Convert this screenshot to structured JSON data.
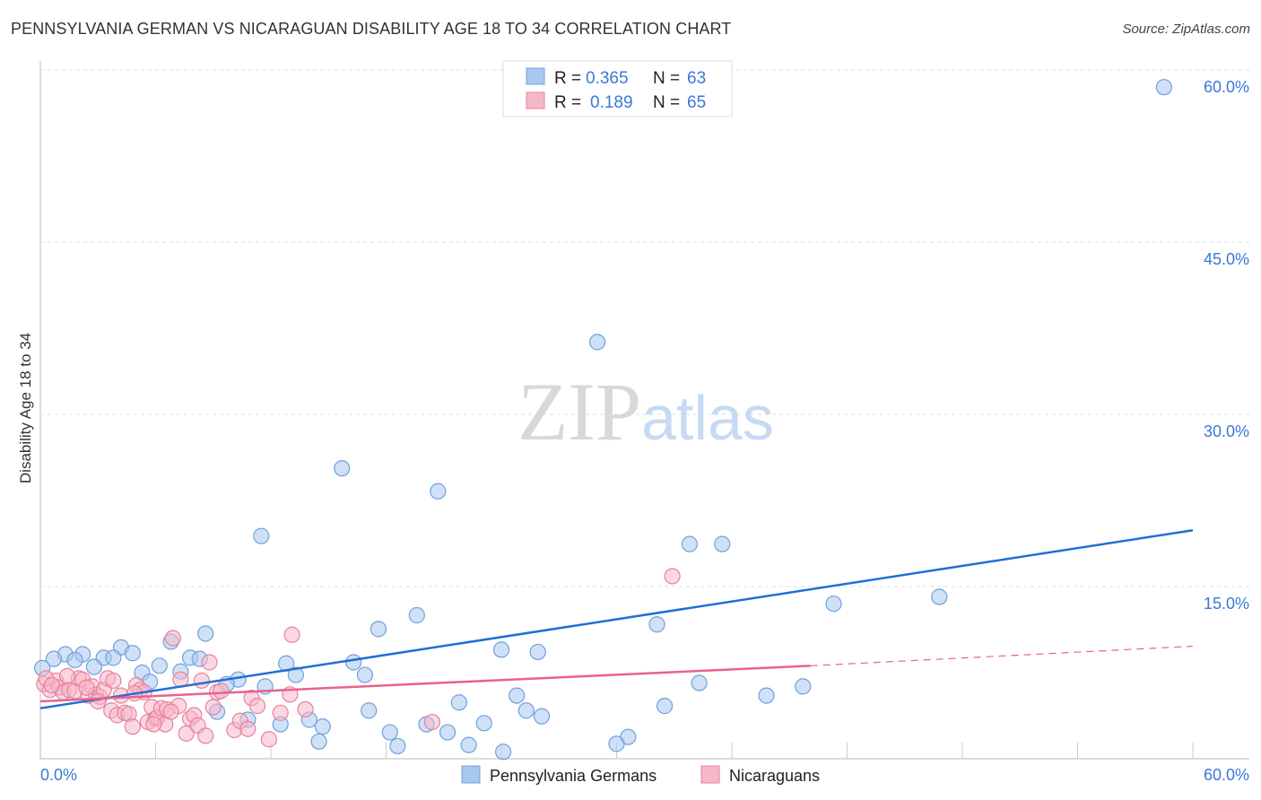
{
  "title": "PENNSYLVANIA GERMAN VS NICARAGUAN DISABILITY AGE 18 TO 34 CORRELATION CHART",
  "source": "Source: ZipAtlas.com",
  "watermark": "ZIPatlas",
  "legend": {
    "r_label": "R =",
    "n_label": "N =",
    "items": [
      {
        "r": "0.365",
        "n": "63"
      },
      {
        "r": "0.189",
        "n": "65"
      }
    ]
  },
  "chart_data": {
    "type": "scatter",
    "title": "PENNSYLVANIA GERMAN VS NICARAGUAN DISABILITY AGE 18 TO 34 CORRELATION CHART",
    "xlabel": "",
    "ylabel": "Disability Age 18 to 34",
    "xlim": [
      0,
      60
    ],
    "ylim": [
      0,
      60
    ],
    "x_tick_labels": [
      "0.0%",
      "60.0%"
    ],
    "y_ticks": [
      15,
      30,
      45,
      60
    ],
    "y_tick_labels": [
      "15.0%",
      "30.0%",
      "45.0%",
      "60.0%"
    ],
    "grid": true,
    "legend_position": "top-center",
    "series": [
      {
        "name": "Pennsylvania Germans",
        "color": "#6fa0dc",
        "fill": "#a9c8f0",
        "line_color": "#1f6fd6",
        "trend": {
          "x": [
            0,
            60
          ],
          "y": [
            4.4,
            19.9
          ]
        },
        "points": [
          [
            58.5,
            58.5
          ],
          [
            29.0,
            36.3
          ],
          [
            15.7,
            25.3
          ],
          [
            20.7,
            23.3
          ],
          [
            11.5,
            19.4
          ],
          [
            33.8,
            18.7
          ],
          [
            35.5,
            18.7
          ],
          [
            46.8,
            14.1
          ],
          [
            41.3,
            13.5
          ],
          [
            19.6,
            12.5
          ],
          [
            32.1,
            11.7
          ],
          [
            17.6,
            11.3
          ],
          [
            8.6,
            10.9
          ],
          [
            6.8,
            10.2
          ],
          [
            4.2,
            9.7
          ],
          [
            4.8,
            9.2
          ],
          [
            1.3,
            9.1
          ],
          [
            2.2,
            9.1
          ],
          [
            24.0,
            9.5
          ],
          [
            25.9,
            9.3
          ],
          [
            1.8,
            8.6
          ],
          [
            3.3,
            8.8
          ],
          [
            3.8,
            8.8
          ],
          [
            7.8,
            8.8
          ],
          [
            8.3,
            8.7
          ],
          [
            0.7,
            8.7
          ],
          [
            12.8,
            8.3
          ],
          [
            16.3,
            8.4
          ],
          [
            6.2,
            8.1
          ],
          [
            2.8,
            8.0
          ],
          [
            0.1,
            7.9
          ],
          [
            5.3,
            7.5
          ],
          [
            7.3,
            7.6
          ],
          [
            16.9,
            7.3
          ],
          [
            13.3,
            7.3
          ],
          [
            10.3,
            6.9
          ],
          [
            5.7,
            6.7
          ],
          [
            9.7,
            6.5
          ],
          [
            11.7,
            6.3
          ],
          [
            34.3,
            6.6
          ],
          [
            39.7,
            6.3
          ],
          [
            24.8,
            5.5
          ],
          [
            37.8,
            5.5
          ],
          [
            21.8,
            4.9
          ],
          [
            32.5,
            4.6
          ],
          [
            17.1,
            4.2
          ],
          [
            9.2,
            4.1
          ],
          [
            25.3,
            4.2
          ],
          [
            26.1,
            3.7
          ],
          [
            14.0,
            3.4
          ],
          [
            10.8,
            3.4
          ],
          [
            23.1,
            3.1
          ],
          [
            20.1,
            3.0
          ],
          [
            12.5,
            3.0
          ],
          [
            14.7,
            2.8
          ],
          [
            21.2,
            2.3
          ],
          [
            18.2,
            2.3
          ],
          [
            30.6,
            1.9
          ],
          [
            14.5,
            1.5
          ],
          [
            30.0,
            1.3
          ],
          [
            22.3,
            1.2
          ],
          [
            18.6,
            1.1
          ],
          [
            24.1,
            0.6
          ]
        ]
      },
      {
        "name": "Nicaraguans",
        "color": "#e8809f",
        "fill": "#f5b8c8",
        "line_color": "#e8628d",
        "trend": {
          "x": [
            0,
            40.1
          ],
          "y": [
            5.0,
            8.1
          ]
        },
        "trend_dashed": {
          "x": [
            40.1,
            60
          ],
          "y": [
            8.1,
            9.8
          ]
        },
        "points": [
          [
            0.2,
            6.5
          ],
          [
            0.5,
            6.0
          ],
          [
            0.8,
            6.8
          ],
          [
            1.0,
            6.2
          ],
          [
            1.2,
            5.8
          ],
          [
            1.5,
            6.0
          ],
          [
            1.8,
            5.9
          ],
          [
            2.0,
            7.0
          ],
          [
            2.2,
            6.9
          ],
          [
            2.5,
            5.5
          ],
          [
            2.7,
            6.3
          ],
          [
            2.9,
            5.6
          ],
          [
            3.1,
            5.4
          ],
          [
            3.3,
            6.0
          ],
          [
            3.5,
            7.0
          ],
          [
            3.7,
            4.2
          ],
          [
            3.8,
            6.8
          ],
          [
            4.0,
            3.8
          ],
          [
            4.2,
            5.5
          ],
          [
            4.4,
            4.0
          ],
          [
            4.6,
            3.9
          ],
          [
            4.8,
            2.8
          ],
          [
            5.0,
            6.4
          ],
          [
            5.2,
            6.0
          ],
          [
            5.4,
            5.8
          ],
          [
            5.6,
            3.2
          ],
          [
            5.8,
            4.5
          ],
          [
            6.0,
            3.5
          ],
          [
            6.1,
            3.6
          ],
          [
            6.3,
            4.4
          ],
          [
            6.5,
            3.0
          ],
          [
            6.6,
            4.3
          ],
          [
            6.9,
            10.5
          ],
          [
            7.2,
            4.6
          ],
          [
            7.3,
            6.9
          ],
          [
            7.6,
            2.2
          ],
          [
            7.8,
            3.5
          ],
          [
            8.0,
            3.8
          ],
          [
            8.2,
            2.9
          ],
          [
            8.4,
            6.8
          ],
          [
            8.6,
            2.0
          ],
          [
            8.8,
            8.4
          ],
          [
            9.2,
            5.8
          ],
          [
            9.4,
            5.9
          ],
          [
            10.1,
            2.5
          ],
          [
            10.4,
            3.3
          ],
          [
            11.0,
            5.3
          ],
          [
            11.3,
            4.6
          ],
          [
            11.9,
            1.7
          ],
          [
            12.5,
            4.0
          ],
          [
            13.0,
            5.6
          ],
          [
            13.1,
            10.8
          ],
          [
            13.8,
            4.3
          ],
          [
            20.4,
            3.2
          ],
          [
            32.9,
            15.9
          ],
          [
            0.3,
            7.0
          ],
          [
            0.6,
            6.4
          ],
          [
            1.4,
            7.2
          ],
          [
            2.4,
            6.2
          ],
          [
            3.0,
            5.0
          ],
          [
            4.9,
            5.7
          ],
          [
            5.9,
            3.0
          ],
          [
            6.8,
            4.1
          ],
          [
            9.0,
            4.5
          ],
          [
            10.8,
            2.6
          ]
        ]
      }
    ]
  }
}
